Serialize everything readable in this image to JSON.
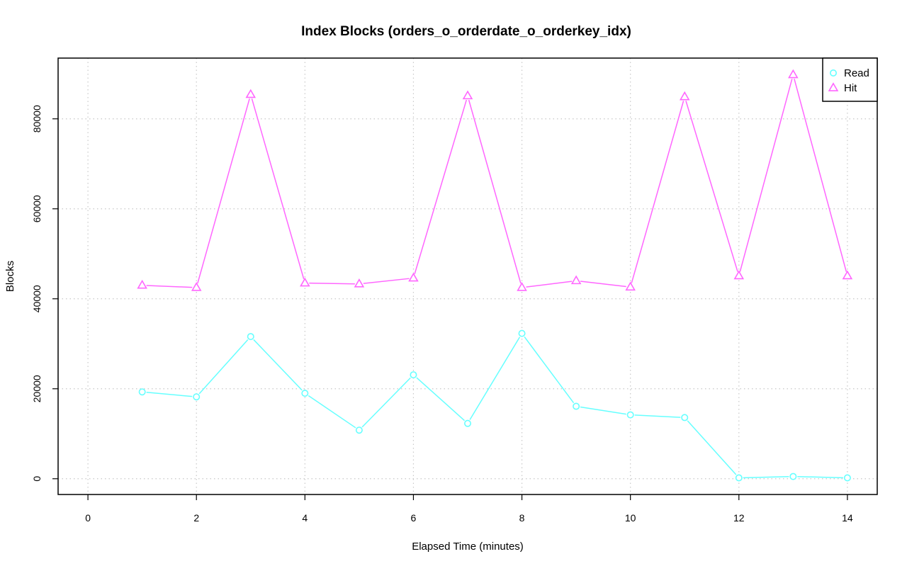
{
  "chart_data": {
    "type": "line",
    "title": "Index Blocks (orders_o_orderdate_o_orderkey_idx)",
    "xlabel": "Elapsed Time (minutes)",
    "ylabel": "Blocks",
    "xlim": [
      -0.55,
      14.55
    ],
    "ylim": [
      -3500,
      93500
    ],
    "xticks": [
      0,
      2,
      4,
      6,
      8,
      10,
      12,
      14
    ],
    "yticks": [
      0,
      20000,
      40000,
      60000,
      80000
    ],
    "grid": true,
    "grid_style": "dotted",
    "legend_position": "top-right",
    "x": [
      1,
      2,
      3,
      4,
      5,
      6,
      7,
      8,
      9,
      10,
      11,
      12,
      13,
      14
    ],
    "series": [
      {
        "name": "Read",
        "color": "#66ffff",
        "marker": "circle",
        "values": [
          19300,
          18200,
          31600,
          19000,
          10800,
          23100,
          12300,
          32300,
          16100,
          14200,
          13600,
          200,
          500,
          200
        ]
      },
      {
        "name": "Hit",
        "color": "#ff66ff",
        "marker": "triangle",
        "values": [
          43000,
          42500,
          85400,
          43500,
          43300,
          44600,
          85100,
          42500,
          44000,
          42600,
          84900,
          45100,
          89800,
          45100
        ]
      }
    ]
  }
}
